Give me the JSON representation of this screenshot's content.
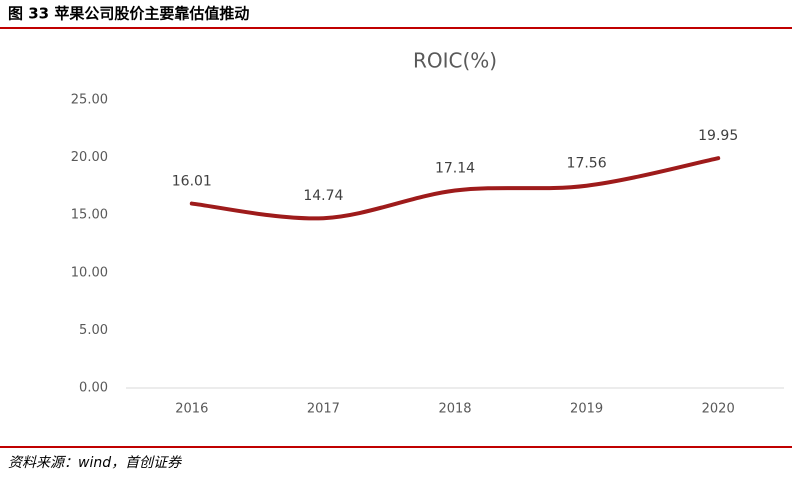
{
  "header": {
    "title": "图 33 苹果公司股价主要靠估值推动"
  },
  "chart_data": {
    "type": "line",
    "title": "ROIC(%)",
    "categories": [
      "2016",
      "2017",
      "2018",
      "2019",
      "2020"
    ],
    "values": [
      16.01,
      14.74,
      17.14,
      17.56,
      19.95
    ],
    "color": "#9e1b1b",
    "ylim": [
      0,
      25
    ],
    "yticks": [
      {
        "value": 0,
        "label": "0.00"
      },
      {
        "value": 5,
        "label": "5.00"
      },
      {
        "value": 10,
        "label": "10.00"
      },
      {
        "value": 15,
        "label": "15.00"
      },
      {
        "value": 20,
        "label": "20.00"
      },
      {
        "value": 25,
        "label": "25.00"
      }
    ],
    "grid": false
  },
  "source": "资料来源：wind，首创证券"
}
